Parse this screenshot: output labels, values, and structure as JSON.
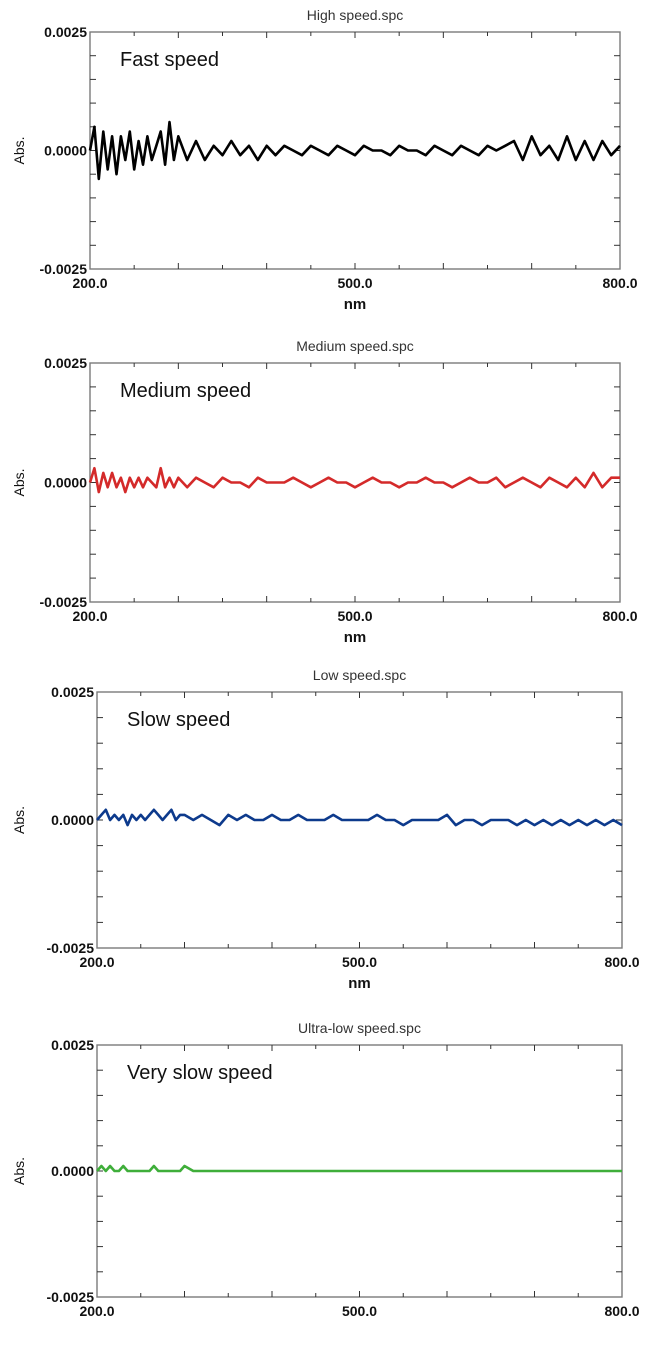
{
  "chart_data": [
    {
      "type": "line",
      "title": "High speed.spc",
      "annotation": "Fast speed",
      "xlabel": "nm",
      "ylabel": "Abs.",
      "xlim": [
        200.0,
        800.0
      ],
      "ylim": [
        -0.0025,
        0.0025
      ],
      "x_ticks": [
        "200.0",
        "500.0",
        "800.0"
      ],
      "y_ticks": [
        "0.0025",
        "0.0000",
        "-0.0025"
      ],
      "series": [
        {
          "color": "#000000",
          "x": [
            200,
            205,
            210,
            215,
            220,
            225,
            230,
            235,
            240,
            245,
            250,
            255,
            260,
            265,
            270,
            275,
            280,
            285,
            290,
            295,
            300,
            310,
            320,
            330,
            340,
            350,
            360,
            370,
            380,
            390,
            400,
            410,
            420,
            430,
            440,
            450,
            460,
            470,
            480,
            490,
            500,
            510,
            520,
            530,
            540,
            550,
            560,
            570,
            580,
            590,
            600,
            610,
            620,
            630,
            640,
            650,
            660,
            670,
            680,
            690,
            700,
            710,
            720,
            730,
            740,
            750,
            760,
            770,
            780,
            790,
            800
          ],
          "y": [
            0.0,
            0.0005,
            -0.0006,
            0.0004,
            -0.0004,
            0.0003,
            -0.0005,
            0.0003,
            -0.0002,
            0.0004,
            -0.0004,
            0.0002,
            -0.0003,
            0.0003,
            -0.0002,
            0.0001,
            0.0004,
            -0.0003,
            0.0006,
            -0.0002,
            0.0003,
            -0.0002,
            0.0002,
            -0.0002,
            0.0001,
            -0.0001,
            0.0002,
            -0.0001,
            0.0001,
            -0.0002,
            0.0001,
            -0.0001,
            0.0001,
            0.0,
            -0.0001,
            0.0001,
            0.0,
            -0.0001,
            0.0001,
            0.0,
            -0.0001,
            0.0001,
            0.0,
            0.0,
            -0.0001,
            0.0001,
            0.0,
            0.0,
            -0.0001,
            0.0001,
            0.0,
            -0.0001,
            0.0001,
            0.0,
            -0.0001,
            0.0001,
            0.0,
            0.0001,
            0.0002,
            -0.0002,
            0.0003,
            -0.0001,
            0.0001,
            -0.0002,
            0.0003,
            -0.0002,
            0.0002,
            -0.0002,
            0.0002,
            -0.0001,
            0.0001
          ]
        }
      ]
    },
    {
      "type": "line",
      "title": "Medium speed.spc",
      "annotation": "Medium speed",
      "xlabel": "nm",
      "ylabel": "Abs.",
      "xlim": [
        200.0,
        800.0
      ],
      "ylim": [
        -0.0025,
        0.0025
      ],
      "x_ticks": [
        "200.0",
        "500.0",
        "800.0"
      ],
      "y_ticks": [
        "0.0025",
        "0.0000",
        "-0.0025"
      ],
      "series": [
        {
          "color": "#d42a2a",
          "x": [
            200,
            205,
            210,
            215,
            220,
            225,
            230,
            235,
            240,
            245,
            250,
            255,
            260,
            265,
            270,
            275,
            280,
            285,
            290,
            295,
            300,
            310,
            320,
            330,
            340,
            350,
            360,
            370,
            380,
            390,
            400,
            410,
            420,
            430,
            440,
            450,
            460,
            470,
            480,
            490,
            500,
            510,
            520,
            530,
            540,
            550,
            560,
            570,
            580,
            590,
            600,
            610,
            620,
            630,
            640,
            650,
            660,
            670,
            680,
            690,
            700,
            710,
            720,
            730,
            740,
            750,
            760,
            770,
            780,
            790,
            800
          ],
          "y": [
            0.0,
            0.0003,
            -0.0002,
            0.0002,
            -0.0001,
            0.0002,
            -0.0001,
            0.0001,
            -0.0002,
            0.0001,
            -0.0001,
            0.0001,
            -0.0001,
            0.0001,
            0.0,
            -0.0001,
            0.0003,
            -0.0001,
            0.0001,
            -0.0001,
            0.0001,
            -0.0001,
            0.0001,
            0.0,
            -0.0001,
            0.0001,
            0.0,
            0.0,
            -0.0001,
            0.0001,
            0.0,
            0.0,
            0.0,
            0.0001,
            0.0,
            -0.0001,
            0.0,
            0.0001,
            0.0,
            0.0,
            -0.0001,
            0.0,
            0.0001,
            0.0,
            0.0,
            -0.0001,
            0.0,
            0.0,
            0.0001,
            0.0,
            0.0,
            -0.0001,
            0.0,
            0.0001,
            0.0,
            0.0,
            0.0001,
            -0.0001,
            0.0,
            0.0001,
            0.0,
            -0.0001,
            0.0001,
            0.0,
            -0.0001,
            0.0001,
            -0.0001,
            0.0002,
            -0.0001,
            0.0001,
            0.0001
          ]
        }
      ]
    },
    {
      "type": "line",
      "title": "Low speed.spc",
      "annotation": "Slow speed",
      "xlabel": "nm",
      "ylabel": "Abs.",
      "xlim": [
        200.0,
        800.0
      ],
      "ylim": [
        -0.0025,
        0.0025
      ],
      "x_ticks": [
        "200.0",
        "500.0",
        "800.0"
      ],
      "y_ticks": [
        "0.0025",
        "0.0000",
        "-0.0025"
      ],
      "series": [
        {
          "color": "#0d3a8c",
          "x": [
            200,
            205,
            210,
            215,
            220,
            225,
            230,
            235,
            240,
            245,
            250,
            255,
            260,
            265,
            270,
            275,
            280,
            285,
            290,
            295,
            300,
            310,
            320,
            330,
            340,
            350,
            360,
            370,
            380,
            390,
            400,
            410,
            420,
            430,
            440,
            450,
            460,
            470,
            480,
            490,
            500,
            510,
            520,
            530,
            540,
            550,
            560,
            570,
            580,
            590,
            600,
            610,
            620,
            630,
            640,
            650,
            660,
            670,
            680,
            690,
            700,
            710,
            720,
            730,
            740,
            750,
            760,
            770,
            780,
            790,
            800
          ],
          "y": [
            0.0,
            0.0001,
            0.0002,
            0.0,
            0.0001,
            0.0,
            0.0001,
            -0.0001,
            0.0001,
            0.0,
            0.0001,
            0.0,
            0.0001,
            0.0002,
            0.0001,
            0.0,
            0.0001,
            0.0002,
            0.0,
            0.0001,
            0.0001,
            0.0,
            0.0001,
            0.0,
            -0.0001,
            0.0001,
            0.0,
            0.0001,
            0.0,
            0.0,
            0.0001,
            0.0,
            0.0,
            0.0001,
            0.0,
            0.0,
            0.0,
            0.0001,
            0.0,
            0.0,
            0.0,
            0.0,
            0.0001,
            0.0,
            0.0,
            -0.0001,
            0.0,
            0.0,
            0.0,
            0.0,
            0.0001,
            -0.0001,
            0.0,
            0.0,
            -0.0001,
            0.0,
            0.0,
            0.0,
            -0.0001,
            0.0,
            -0.0001,
            0.0,
            -0.0001,
            0.0,
            -0.0001,
            0.0,
            -0.0001,
            0.0,
            -0.0001,
            0.0,
            -0.0001
          ]
        }
      ]
    },
    {
      "type": "line",
      "title": "Ultra-low speed.spc",
      "annotation": "Very slow speed",
      "xlabel": "",
      "ylabel": "Abs.",
      "xlim": [
        200.0,
        800.0
      ],
      "ylim": [
        -0.0025,
        0.0025
      ],
      "x_ticks": [
        "200.0",
        "500.0",
        "800.0"
      ],
      "y_ticks": [
        "0.0025",
        "0.0000",
        "-0.0025"
      ],
      "series": [
        {
          "color": "#3fae3a",
          "x": [
            200,
            205,
            210,
            215,
            220,
            225,
            230,
            235,
            240,
            245,
            250,
            255,
            260,
            265,
            270,
            275,
            280,
            285,
            290,
            295,
            300,
            310,
            320,
            330,
            340,
            350,
            360,
            370,
            380,
            390,
            400,
            410,
            420,
            430,
            440,
            450,
            460,
            470,
            480,
            490,
            500,
            510,
            520,
            530,
            540,
            550,
            560,
            570,
            580,
            590,
            600,
            610,
            620,
            630,
            640,
            650,
            660,
            670,
            680,
            690,
            700,
            710,
            720,
            730,
            740,
            750,
            760,
            770,
            780,
            790,
            800
          ],
          "y": [
            0.0,
            0.0001,
            0.0,
            0.0001,
            0.0,
            0.0,
            0.0001,
            0.0,
            0.0,
            0.0,
            0.0,
            0.0,
            0.0,
            0.0001,
            0.0,
            0.0,
            0.0,
            0.0,
            0.0,
            0.0,
            0.0001,
            0.0,
            0.0,
            0.0,
            0.0,
            0.0,
            0.0,
            0.0,
            0.0,
            0.0,
            0.0,
            0.0,
            0.0,
            0.0,
            0.0,
            0.0,
            0.0,
            0.0,
            0.0,
            0.0,
            0.0,
            0.0,
            0.0,
            0.0,
            0.0,
            0.0,
            0.0,
            0.0,
            0.0,
            0.0,
            0.0,
            0.0,
            0.0,
            0.0,
            0.0,
            0.0,
            0.0,
            0.0,
            0.0,
            0.0,
            0.0,
            0.0,
            0.0,
            0.0,
            0.0,
            0.0,
            0.0,
            0.0,
            0.0,
            0.0,
            0.0
          ]
        }
      ]
    }
  ]
}
